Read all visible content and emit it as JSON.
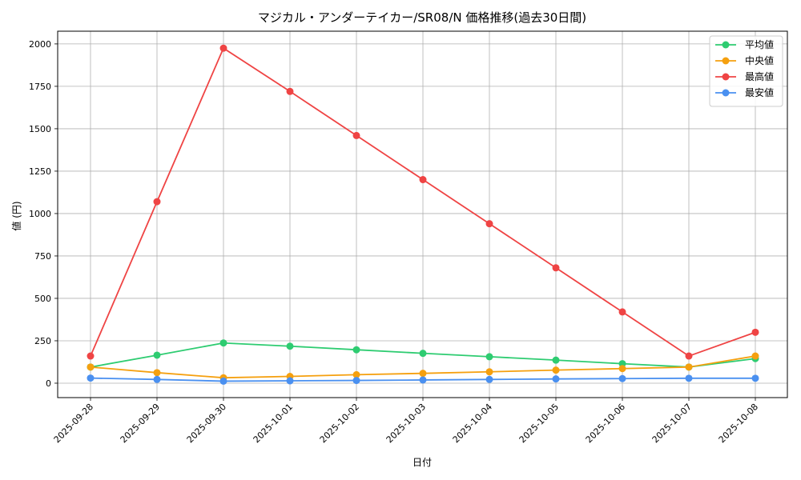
{
  "chart_data": {
    "type": "line",
    "title": "マジカル・アンダーテイカー/SR08/N 価格推移(過去30日間)",
    "xlabel": "日付",
    "ylabel": "値 (円)",
    "categories": [
      "2025-09-28",
      "2025-09-29",
      "2025-09-30",
      "2025-10-01",
      "2025-10-02",
      "2025-10-03",
      "2025-10-04",
      "2025-10-05",
      "2025-10-06",
      "2025-10-07",
      "2025-10-08"
    ],
    "ylim": [
      -85,
      2075
    ],
    "yticks": [
      0,
      250,
      500,
      750,
      1000,
      1250,
      1500,
      1750,
      2000
    ],
    "grid": true,
    "legend_position": "top-right",
    "series": [
      {
        "name": "平均値",
        "color": "#2ecc71",
        "values": [
          95,
          165,
          237,
          218,
          197,
          176,
          156,
          136,
          115,
          95,
          145
        ]
      },
      {
        "name": "中央値",
        "color": "#f5a00f",
        "values": [
          95,
          62,
          32,
          40,
          50,
          58,
          67,
          77,
          86,
          95,
          160
        ]
      },
      {
        "name": "最高値",
        "color": "#ef4444",
        "values": [
          160,
          1070,
          1975,
          1720,
          1460,
          1200,
          940,
          680,
          420,
          160,
          300
        ]
      },
      {
        "name": "最安値",
        "color": "#4a90f0",
        "values": [
          30,
          22,
          12,
          14,
          16,
          19,
          22,
          25,
          27,
          29,
          29
        ]
      }
    ]
  }
}
